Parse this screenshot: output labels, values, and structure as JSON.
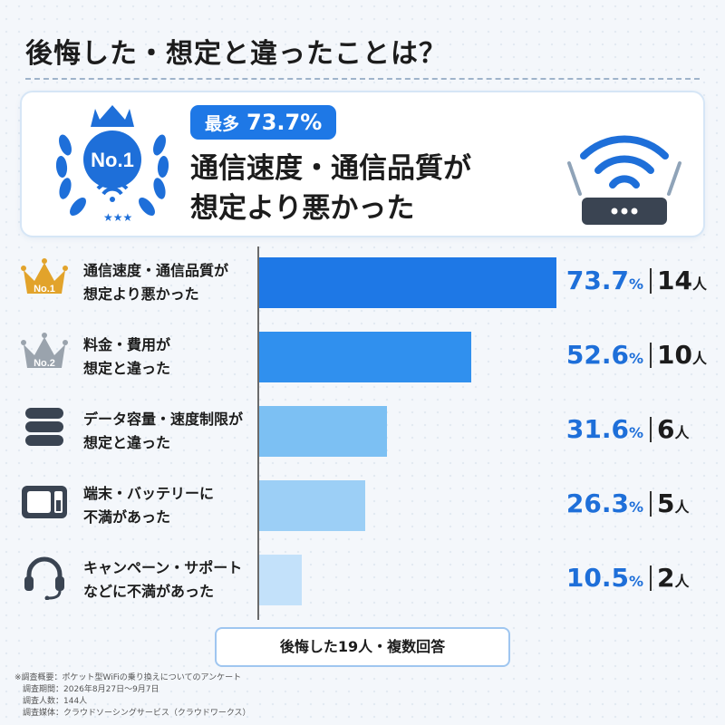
{
  "title": "後悔した・想定と違ったことは？",
  "hero": {
    "badge_rank": "No.1",
    "pill_label": "最多",
    "pill_value": "73.7%",
    "headline_line1": "通信速度・通信品質が",
    "headline_line2": "想定より悪かった"
  },
  "chart_data": {
    "type": "bar",
    "orientation": "horizontal",
    "categories": [
      "通信速度・通信品質が想定より悪かった",
      "料金・費用が想定と違った",
      "データ容量・速度制限が想定と違った",
      "端末・バッテリーに不満があった",
      "キャンペーン・サポートなどに不満があった"
    ],
    "series": [
      {
        "values": [
          73.7,
          52.6,
          31.6,
          26.3,
          10.5
        ]
      }
    ],
    "counts": [
      14,
      10,
      6,
      5,
      2
    ],
    "value_unit": "%",
    "count_unit": "人",
    "xlim": [
      0,
      73.7
    ]
  },
  "rows": [
    {
      "line1": "通信速度・通信品質が",
      "line2": "想定より悪かった",
      "pct": "73.7",
      "pct_unit": "%",
      "count": "14",
      "count_unit": "人",
      "rank": "No.1",
      "icon": "gold-crown-icon"
    },
    {
      "line1": "料金・費用が",
      "line2": "想定と違った",
      "pct": "52.6",
      "pct_unit": "%",
      "count": "10",
      "count_unit": "人",
      "rank": "No.2",
      "icon": "silver-crown-icon"
    },
    {
      "line1": "データ容量・速度制限が",
      "line2": "想定と違った",
      "pct": "31.6",
      "pct_unit": "%",
      "count": "6",
      "count_unit": "人",
      "icon": "database-icon"
    },
    {
      "line1": "端末・バッテリーに",
      "line2": "不満があった",
      "pct": "26.3",
      "pct_unit": "%",
      "count": "5",
      "count_unit": "人",
      "icon": "device-battery-icon"
    },
    {
      "line1": "キャンペーン・サポート",
      "line2": "などに不満があった",
      "pct": "10.5",
      "pct_unit": "%",
      "count": "2",
      "count_unit": "人",
      "icon": "headset-icon"
    }
  ],
  "colors": {
    "accent": "#1e78e6",
    "bars": [
      "#1e78e6",
      "#3090ee",
      "#7cc0f3",
      "#9ccff6",
      "#c3e1fa"
    ],
    "pct_text": "#1e6fd9",
    "gold": "#e2a32b",
    "silver": "#9aa3ad"
  },
  "footer": "後悔した19人・複数回答",
  "notes": [
    "※調査概要：ポケット型WiFiの乗り換えについてのアンケート",
    "　調査期間：2026年8月27日〜9月7日",
    "　調査人数：144人",
    "　調査媒体：クラウドソーシングサービス（クラウドワークス）"
  ]
}
